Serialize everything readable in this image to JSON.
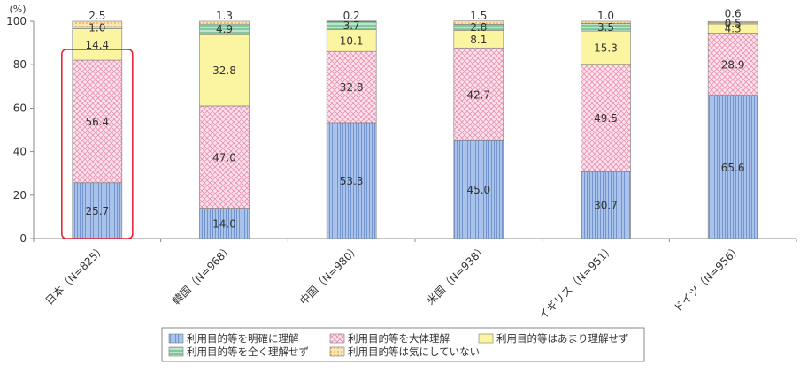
{
  "chart_data": {
    "type": "bar",
    "stacked": true,
    "y_unit": "(%)",
    "ylim": [
      0,
      100
    ],
    "y_ticks": [
      0,
      20,
      40,
      60,
      80,
      100
    ],
    "grid": false,
    "legend_position": "bottom",
    "highlight_category": "日本（N=825）",
    "categories": [
      "日本（N=825）",
      "韓国（N=968）",
      "中国（N=980）",
      "米国（N=938）",
      "イギリス（N=951）",
      "ドイツ（N=956）"
    ],
    "series": [
      {
        "name": "利用目的等を明確に理解",
        "color": "#9db9e6",
        "values": [
          25.7,
          14.0,
          53.3,
          45.0,
          30.7,
          65.6
        ]
      },
      {
        "name": "利用目的等を大体理解",
        "color": "#f4b8cf",
        "values": [
          56.4,
          47.0,
          32.8,
          42.7,
          49.5,
          28.9
        ]
      },
      {
        "name": "利用目的等はあまり理解せず",
        "color": "#fbf4a0",
        "values": [
          14.4,
          32.8,
          10.1,
          8.1,
          15.3,
          4.3
        ]
      },
      {
        "name": "利用目的等を全く理解せず",
        "color": "#7fc9a0",
        "values": [
          1.0,
          4.9,
          3.7,
          2.8,
          3.5,
          0.5
        ]
      },
      {
        "name": "利用目的等は気にしていない",
        "color": "#f8cf86",
        "values": [
          2.5,
          1.3,
          0.2,
          1.5,
          1.0,
          0.6
        ]
      }
    ]
  }
}
